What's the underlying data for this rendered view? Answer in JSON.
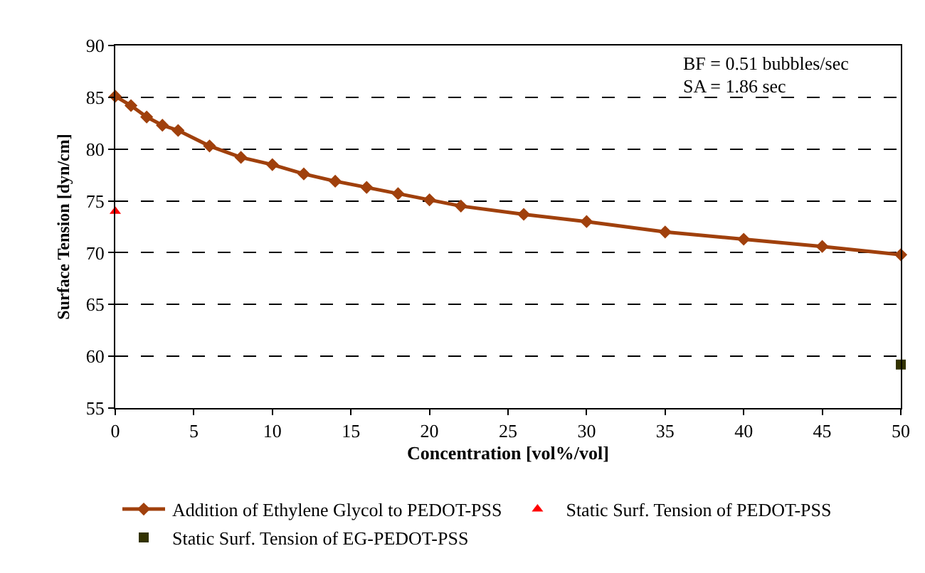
{
  "chart_data": {
    "type": "line",
    "xlabel": "Concentration [vol%/vol]",
    "ylabel": "Surface Tension [dyn/cm]",
    "annotations": [
      "BF = 0.51 bubbles/sec",
      "SA = 1.86 sec"
    ],
    "xlim": [
      0,
      50
    ],
    "xticks": [
      0,
      5,
      10,
      15,
      20,
      25,
      30,
      35,
      40,
      45,
      50
    ],
    "ylim": [
      55,
      90
    ],
    "yticks": [
      55,
      60,
      65,
      70,
      75,
      80,
      85,
      90
    ],
    "grid": "y",
    "legend": "bottom",
    "series": [
      {
        "name": "Addition of Ethylene Glycol to PEDOT-PSS",
        "marker": "diamond",
        "color": "#a0400c",
        "x": [
          0,
          1,
          2,
          3,
          4,
          6,
          8,
          10,
          12,
          14,
          16,
          18,
          20,
          22,
          26,
          30,
          35,
          40,
          45,
          50
        ],
        "values": [
          85.1,
          84.2,
          83.1,
          82.3,
          81.8,
          80.3,
          79.2,
          78.5,
          77.6,
          76.9,
          76.3,
          75.7,
          75.1,
          74.5,
          73.7,
          73.0,
          72.0,
          71.3,
          70.6,
          69.8
        ]
      },
      {
        "name": "Static Surf. Tension of PEDOT-PSS",
        "type": "scatter",
        "marker": "triangle",
        "color": "#ff0000",
        "x": [
          0
        ],
        "values": [
          74.0
        ]
      },
      {
        "name": "Static Surf. Tension of EG-PEDOT-PSS",
        "type": "scatter",
        "marker": "square",
        "color": "#333300",
        "x": [
          50
        ],
        "values": [
          59.2
        ]
      }
    ]
  }
}
